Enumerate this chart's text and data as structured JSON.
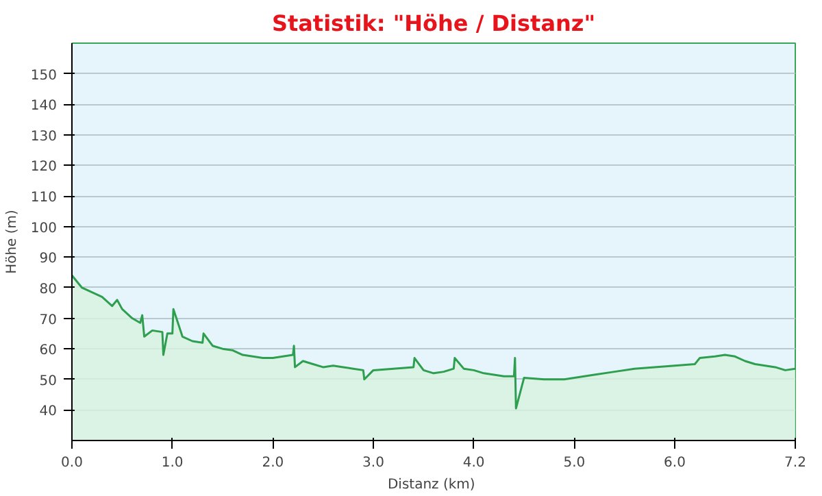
{
  "chart_data": {
    "type": "area",
    "title": "Statistik: \"Höhe / Distanz\"",
    "xlabel": "Distanz  (km)",
    "ylabel": "Höhe (m)",
    "x": [
      0,
      0.05,
      0.1,
      0.2,
      0.3,
      0.4,
      0.45,
      0.5,
      0.6,
      0.68,
      0.7,
      0.72,
      0.8,
      0.9,
      0.91,
      0.95,
      1.0,
      1.01,
      1.1,
      1.2,
      1.3,
      1.31,
      1.4,
      1.5,
      1.6,
      1.7,
      1.8,
      1.9,
      2.0,
      2.1,
      2.2,
      2.21,
      2.22,
      2.3,
      2.4,
      2.5,
      2.6,
      2.7,
      2.8,
      2.9,
      2.91,
      3.0,
      3.2,
      3.4,
      3.41,
      3.5,
      3.6,
      3.7,
      3.8,
      3.81,
      3.9,
      4.0,
      4.1,
      4.2,
      4.3,
      4.4,
      4.41,
      4.42,
      4.5,
      4.7,
      4.9,
      5.0,
      5.2,
      5.4,
      5.6,
      5.8,
      6.0,
      6.2,
      6.25,
      6.4,
      6.5,
      6.6,
      6.7,
      6.8,
      7.0,
      7.1,
      7.2
    ],
    "series": [
      {
        "color": "#2e9e4f",
        "values": [
          84,
          82,
          80,
          78.5,
          77,
          74,
          76,
          73,
          70,
          68.5,
          71,
          64,
          66,
          65.5,
          58,
          65,
          65,
          73,
          64,
          62.5,
          62,
          65,
          61,
          60,
          59.5,
          58,
          57.5,
          57,
          57,
          57.5,
          58,
          61,
          54,
          56,
          55,
          54,
          54.5,
          54,
          53.5,
          53,
          50,
          53,
          53.5,
          54,
          57,
          53,
          52,
          52.5,
          53.5,
          57,
          53.5,
          53,
          52,
          51.5,
          51,
          51,
          57,
          40.5,
          50.5,
          50,
          50,
          50.5,
          51.5,
          52.5,
          53.5,
          54,
          54.5,
          55,
          57,
          57.5,
          58,
          57.5,
          56,
          55,
          54,
          53,
          53.5
        ]
      }
    ],
    "xlim": [
      0,
      7.2
    ],
    "ylim": [
      30,
      160
    ],
    "xticks": [
      {
        "value": 0,
        "label": "0.0"
      },
      {
        "value": 1,
        "label": "1.0"
      },
      {
        "value": 2,
        "label": "2.0"
      },
      {
        "value": 3,
        "label": "3.0"
      },
      {
        "value": 4,
        "label": "4.0"
      },
      {
        "value": 5,
        "label": "5.0"
      },
      {
        "value": 6,
        "label": "6.0"
      },
      {
        "value": 7.2,
        "label": "7.2"
      }
    ],
    "yticks": [
      40,
      50,
      60,
      70,
      80,
      90,
      100,
      110,
      120,
      130,
      140,
      150
    ],
    "grid": "y"
  }
}
